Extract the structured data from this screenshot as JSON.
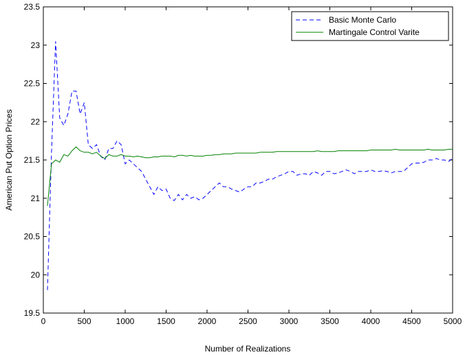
{
  "chart_data": {
    "type": "line",
    "title": "",
    "xlabel": "Number of Realizations",
    "ylabel": "American Put Option Prices",
    "xlim": [
      0,
      5000
    ],
    "ylim": [
      19.5,
      23.5
    ],
    "xticks": [
      0,
      500,
      1000,
      1500,
      2000,
      2500,
      3000,
      3500,
      4000,
      4500,
      5000
    ],
    "yticks": [
      19.5,
      20,
      20.5,
      21,
      21.5,
      22,
      22.5,
      23,
      23.5
    ],
    "grid": false,
    "legend_position": "top-right",
    "series": [
      {
        "name": "Basic Monte Carlo",
        "color": "#0000ff",
        "line_style": "dashed",
        "x": [
          50,
          100,
          150,
          200,
          250,
          300,
          350,
          400,
          450,
          500,
          550,
          600,
          650,
          700,
          750,
          800,
          850,
          900,
          950,
          1000,
          1050,
          1100,
          1150,
          1200,
          1250,
          1300,
          1350,
          1400,
          1450,
          1500,
          1550,
          1600,
          1650,
          1700,
          1750,
          1800,
          1850,
          1900,
          1950,
          2000,
          2050,
          2100,
          2150,
          2200,
          2250,
          2300,
          2350,
          2400,
          2450,
          2500,
          2550,
          2600,
          2650,
          2700,
          2750,
          2800,
          2850,
          2900,
          2950,
          3000,
          3050,
          3100,
          3150,
          3200,
          3250,
          3300,
          3350,
          3400,
          3450,
          3500,
          3550,
          3600,
          3650,
          3700,
          3750,
          3800,
          3850,
          3900,
          3950,
          4000,
          4050,
          4100,
          4150,
          4200,
          4250,
          4300,
          4350,
          4400,
          4450,
          4500,
          4550,
          4600,
          4650,
          4700,
          4750,
          4800,
          4850,
          4900,
          4950,
          5000
        ],
        "y": [
          19.8,
          21.6,
          23.05,
          22.05,
          21.95,
          22.1,
          22.4,
          22.4,
          22.1,
          22.25,
          21.7,
          21.65,
          21.7,
          21.55,
          21.5,
          21.65,
          21.65,
          21.75,
          21.7,
          21.45,
          21.5,
          21.45,
          21.4,
          21.35,
          21.25,
          21.15,
          21.05,
          21.15,
          21.1,
          21.12,
          21.0,
          20.97,
          21.05,
          20.98,
          21.05,
          21.0,
          21.02,
          20.98,
          21.0,
          21.05,
          21.1,
          21.15,
          21.2,
          21.15,
          21.15,
          21.12,
          21.1,
          21.08,
          21.12,
          21.15,
          21.15,
          21.2,
          21.2,
          21.22,
          21.25,
          21.25,
          21.28,
          21.3,
          21.32,
          21.35,
          21.35,
          21.3,
          21.32,
          21.32,
          21.3,
          21.35,
          21.33,
          21.3,
          21.35,
          21.35,
          21.32,
          21.33,
          21.35,
          21.37,
          21.35,
          21.32,
          21.35,
          21.35,
          21.35,
          21.37,
          21.35,
          21.35,
          21.36,
          21.35,
          21.33,
          21.35,
          21.35,
          21.35,
          21.4,
          21.45,
          21.46,
          21.46,
          21.47,
          21.5,
          21.5,
          21.52,
          21.5,
          21.5,
          21.48,
          21.52
        ]
      },
      {
        "name": "Martingale Control Varite",
        "color": "#008000",
        "line_style": "solid",
        "x": [
          50,
          100,
          150,
          200,
          250,
          300,
          350,
          400,
          450,
          500,
          550,
          600,
          650,
          700,
          750,
          800,
          850,
          900,
          950,
          1000,
          1050,
          1100,
          1150,
          1200,
          1250,
          1300,
          1350,
          1400,
          1450,
          1500,
          1550,
          1600,
          1650,
          1700,
          1750,
          1800,
          1850,
          1900,
          1950,
          2000,
          2050,
          2100,
          2150,
          2200,
          2250,
          2300,
          2350,
          2400,
          2450,
          2500,
          2550,
          2600,
          2650,
          2700,
          2750,
          2800,
          2850,
          2900,
          2950,
          3000,
          3050,
          3100,
          3150,
          3200,
          3250,
          3300,
          3350,
          3400,
          3450,
          3500,
          3550,
          3600,
          3650,
          3700,
          3750,
          3800,
          3850,
          3900,
          3950,
          4000,
          4050,
          4100,
          4150,
          4200,
          4250,
          4300,
          4350,
          4400,
          4450,
          4500,
          4550,
          4600,
          4650,
          4700,
          4750,
          4800,
          4850,
          4900,
          4950,
          5000
        ],
        "y": [
          20.9,
          21.45,
          21.5,
          21.47,
          21.57,
          21.55,
          21.62,
          21.67,
          21.62,
          21.6,
          21.6,
          21.58,
          21.6,
          21.55,
          21.52,
          21.57,
          21.55,
          21.55,
          21.57,
          21.55,
          21.55,
          21.54,
          21.55,
          21.54,
          21.53,
          21.53,
          21.54,
          21.54,
          21.55,
          21.55,
          21.55,
          21.54,
          21.56,
          21.56,
          21.55,
          21.56,
          21.55,
          21.55,
          21.55,
          21.56,
          21.56,
          21.57,
          21.57,
          21.58,
          21.58,
          21.58,
          21.59,
          21.59,
          21.59,
          21.59,
          21.59,
          21.59,
          21.6,
          21.6,
          21.6,
          21.6,
          21.61,
          21.61,
          21.61,
          21.61,
          21.61,
          21.61,
          21.61,
          21.61,
          21.61,
          21.61,
          21.62,
          21.61,
          21.61,
          21.61,
          21.61,
          21.62,
          21.62,
          21.62,
          21.62,
          21.62,
          21.62,
          21.62,
          21.62,
          21.63,
          21.63,
          21.63,
          21.63,
          21.63,
          21.63,
          21.64,
          21.63,
          21.63,
          21.63,
          21.63,
          21.63,
          21.63,
          21.63,
          21.64,
          21.63,
          21.63,
          21.63,
          21.63,
          21.64,
          21.64
        ]
      }
    ]
  }
}
